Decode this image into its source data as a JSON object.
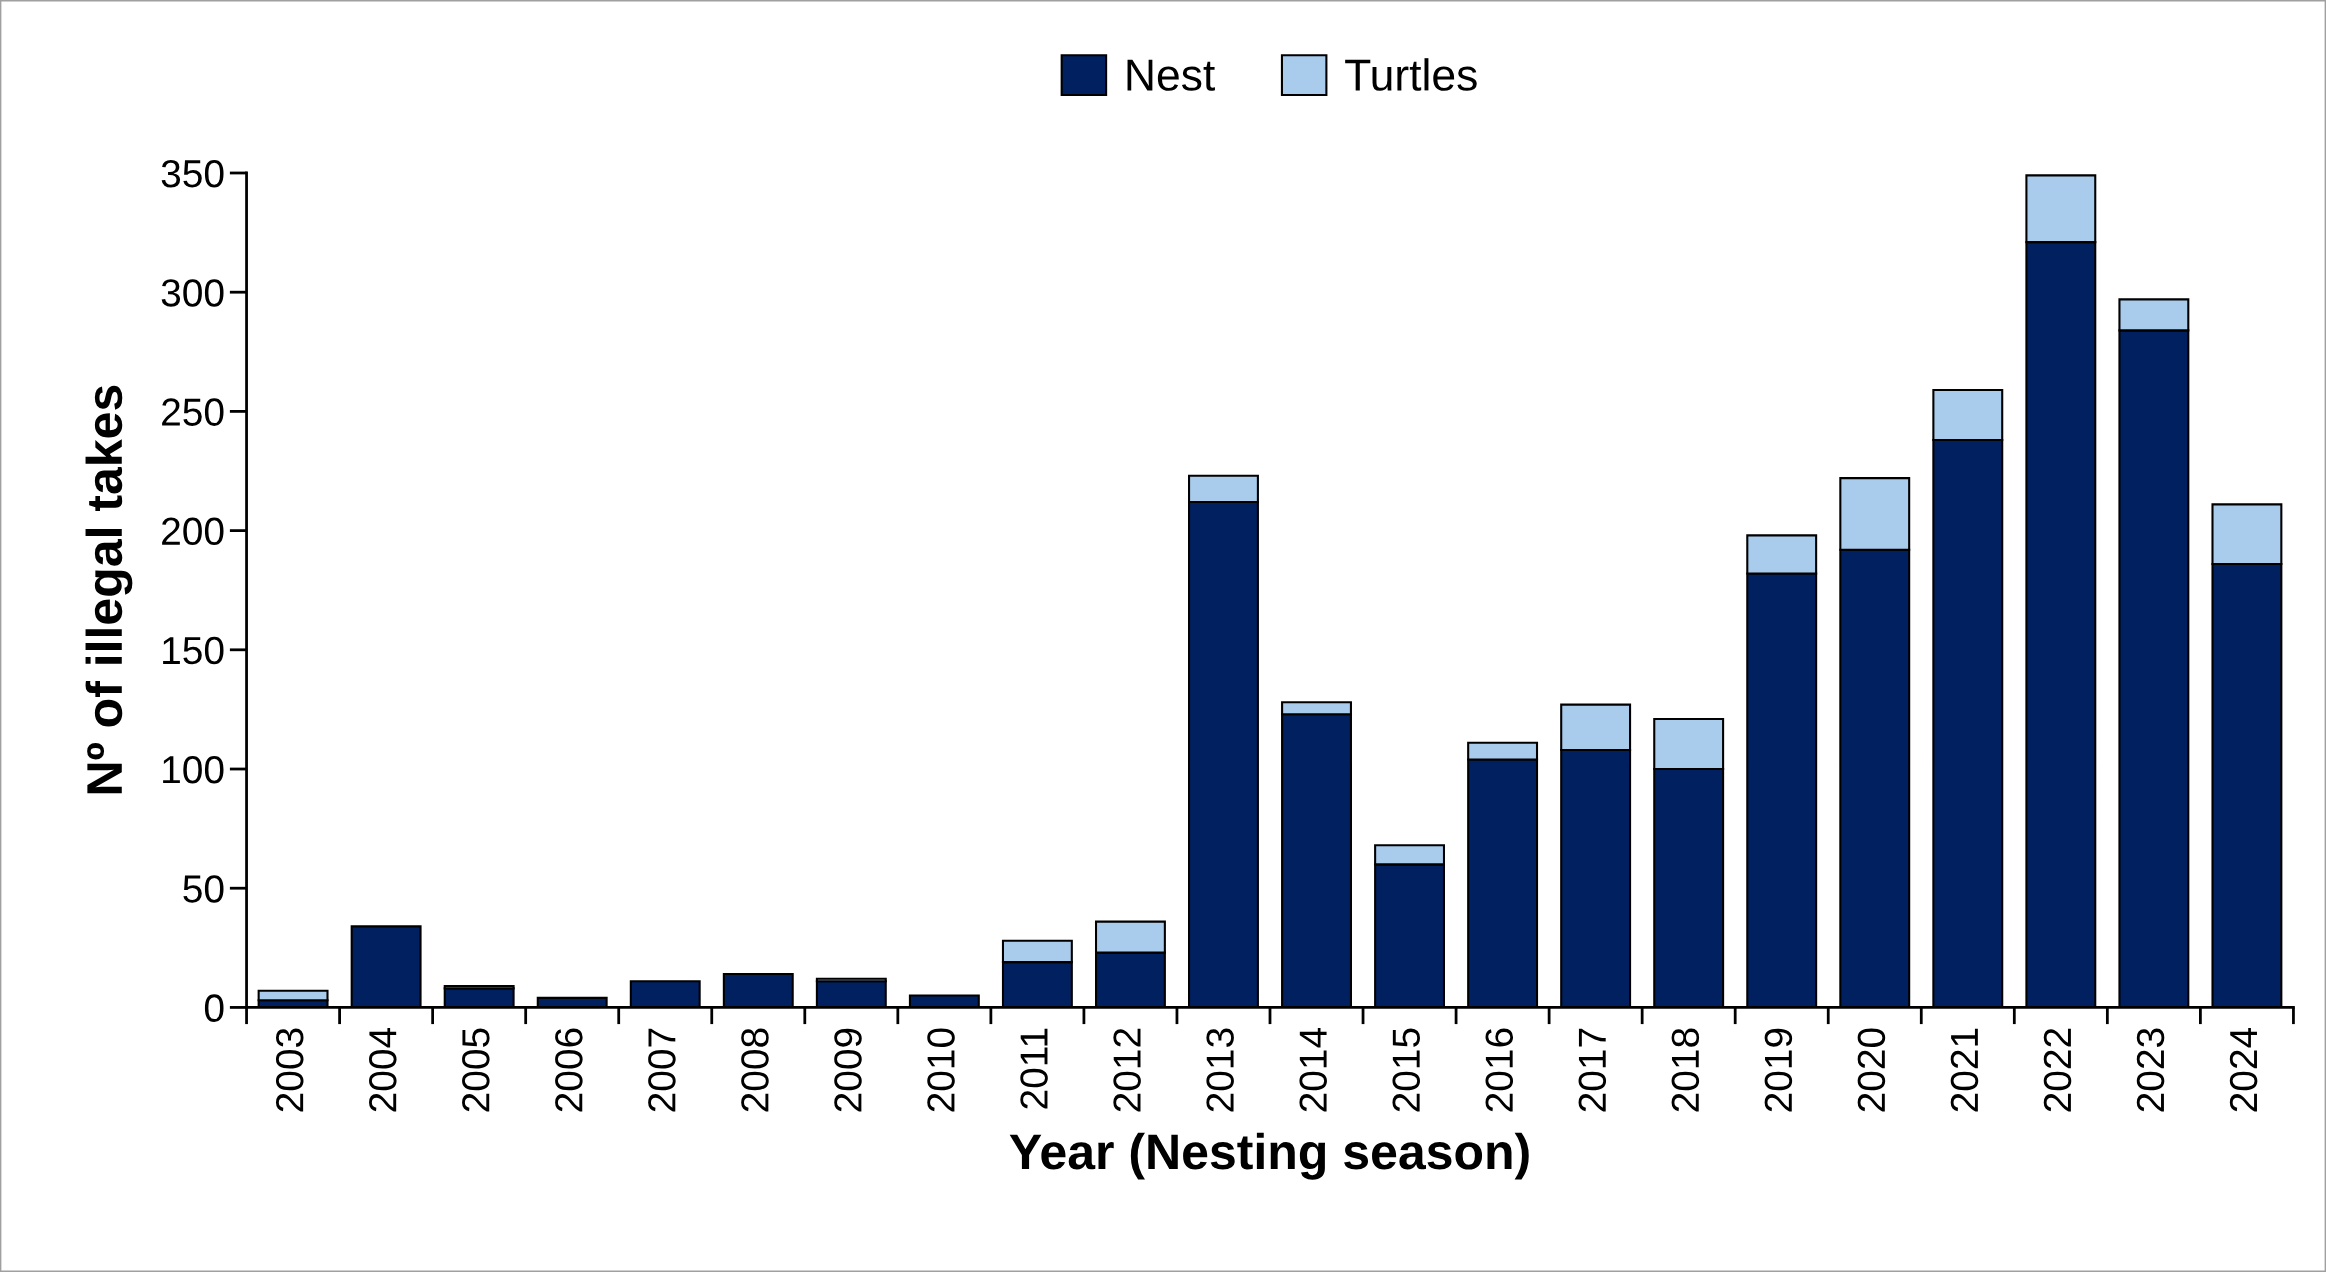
{
  "chart_data": {
    "type": "bar",
    "stacked": true,
    "xlabel": "Year (Nesting season)",
    "ylabel": "Nº of illegal takes",
    "categories": [
      "2003",
      "2004",
      "2005",
      "2006",
      "2007",
      "2008",
      "2009",
      "2010",
      "2011",
      "2012",
      "2013",
      "2014",
      "2015",
      "2016",
      "2017",
      "2018",
      "2019",
      "2020",
      "2021",
      "2022",
      "2023",
      "2024"
    ],
    "series": [
      {
        "name": "Nest",
        "color": "#002060",
        "values": [
          3,
          34,
          8,
          4,
          11,
          14,
          11,
          5,
          19,
          23,
          212,
          123,
          60,
          104,
          108,
          100,
          182,
          192,
          238,
          321,
          284,
          186
        ]
      },
      {
        "name": "Turtles",
        "color": "#a9cbec",
        "values": [
          4,
          null,
          1,
          null,
          null,
          null,
          1,
          null,
          9,
          13,
          11,
          5,
          8,
          7,
          19,
          21,
          16,
          30,
          21,
          28,
          13,
          25
        ]
      }
    ],
    "ylim": [
      0,
      350
    ],
    "yticks": [
      0,
      50,
      100,
      150,
      200,
      250,
      300,
      350
    ],
    "grid": false,
    "legend": "top"
  }
}
